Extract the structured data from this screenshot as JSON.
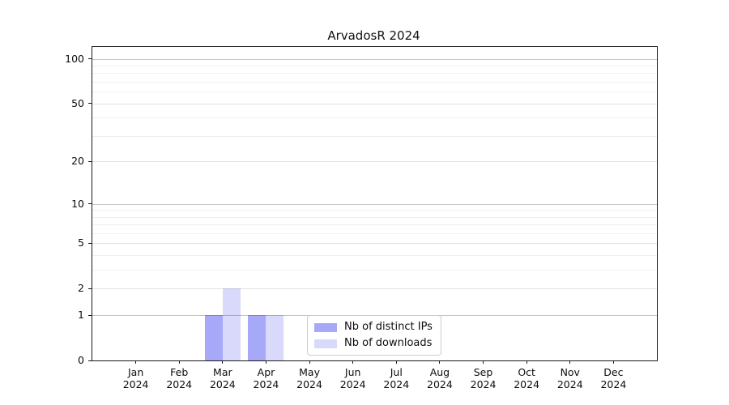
{
  "title": "ArvadosR 2024",
  "chart_data": {
    "type": "bar",
    "title": "ArvadosR 2024",
    "categories": [
      "Jan",
      "Feb",
      "Mar",
      "Apr",
      "May",
      "Jun",
      "Jul",
      "Aug",
      "Sep",
      "Oct",
      "Nov",
      "Dec"
    ],
    "year": "2024",
    "series": [
      {
        "name": "Nb of distinct IPs",
        "color": "rgba(0,0,235,0.34)",
        "values": [
          0,
          0,
          1,
          1,
          0,
          0,
          0,
          0,
          0,
          0,
          0,
          0
        ]
      },
      {
        "name": "Nb of downloads",
        "color": "rgba(0,0,235,0.15)",
        "values": [
          0,
          0,
          2,
          1,
          0,
          0,
          0,
          0,
          0,
          0,
          0,
          0
        ]
      }
    ],
    "xlabel": "",
    "ylabel": "",
    "yscale": "log1p",
    "ylim": [
      0,
      120
    ],
    "yticks": [
      0,
      1,
      2,
      5,
      10,
      20,
      50,
      100
    ],
    "minor_gridlines": [
      3,
      4,
      6,
      7,
      8,
      9,
      30,
      40,
      60,
      70,
      80,
      90
    ],
    "grid": true,
    "legend_position": "lower-center-inside",
    "colors": {
      "distinct_ips_bar": "#a8a8f5",
      "downloads_bar": "#d9d9fb",
      "axis": "#1a1a1a",
      "grid_major": "#c6c6c6",
      "grid_minor": "#efefef"
    }
  }
}
